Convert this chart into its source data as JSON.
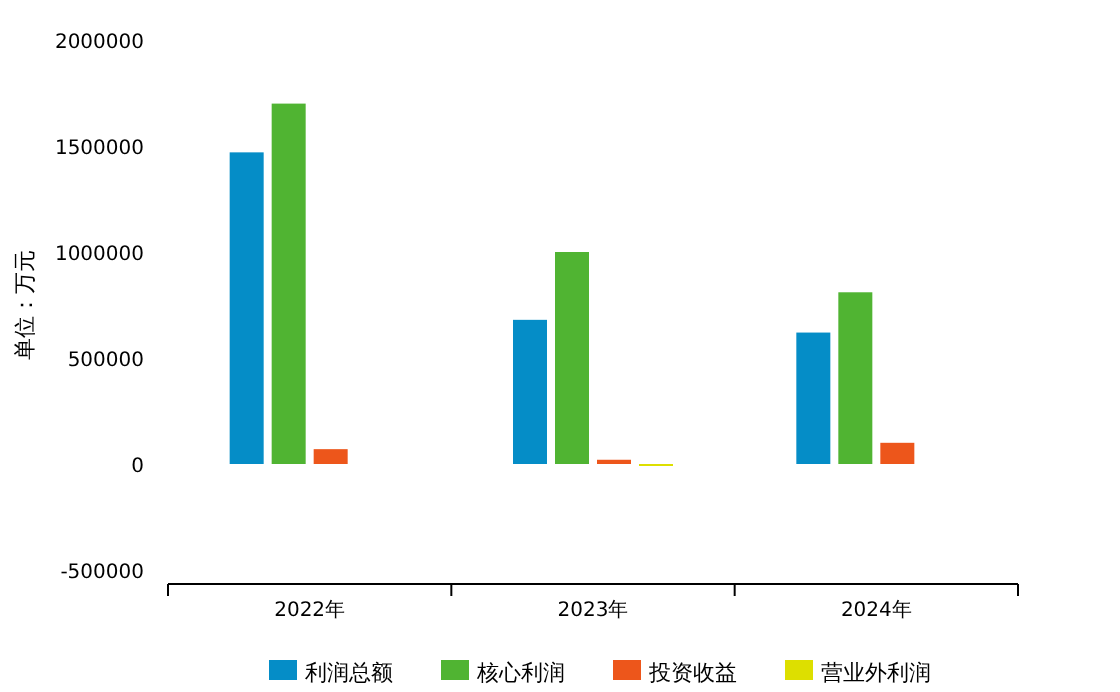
{
  "chart_data": {
    "type": "bar",
    "ylabel": "单位：万元",
    "categories": [
      "2022年",
      "2023年",
      "2024年"
    ],
    "series": [
      {
        "name": "利润总额",
        "color": "#058dc7",
        "values": [
          1470000,
          680000,
          620000
        ]
      },
      {
        "name": "核心利润",
        "color": "#50b432",
        "values": [
          1700000,
          1000000,
          810000
        ]
      },
      {
        "name": "投资收益",
        "color": "#ed561b",
        "values": [
          70000,
          20000,
          100000
        ]
      },
      {
        "name": "营业外利润",
        "color": "#dddf00",
        "values": [
          null,
          -5000,
          null
        ]
      }
    ],
    "ylim": [
      -500000,
      2000000
    ],
    "yticks": [
      -500000,
      0,
      500000,
      1000000,
      1500000,
      2000000
    ],
    "legend": "bottom"
  }
}
